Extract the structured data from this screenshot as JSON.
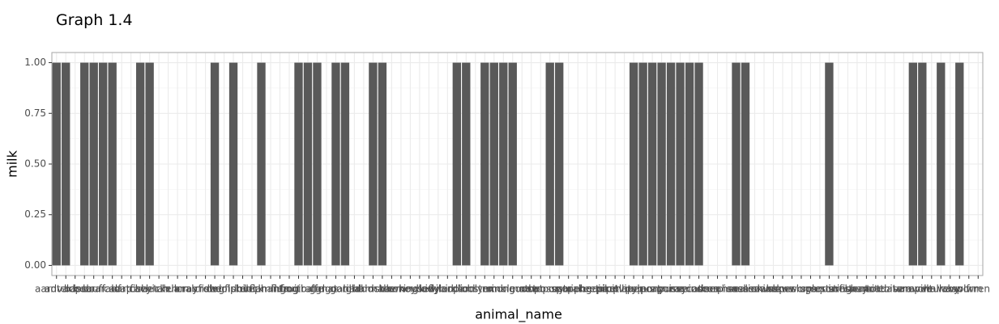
{
  "chart_data": {
    "type": "bar",
    "title": "Graph 1.4",
    "x_label": "animal_name",
    "y_label": "milk",
    "categories": [
      "aardvark",
      "antelope",
      "bass",
      "bear",
      "boar",
      "buffalo",
      "calf",
      "carp",
      "catfish",
      "cavy",
      "cheetah",
      "chicken",
      "chub",
      "clam",
      "crab",
      "crayfish",
      "crow",
      "deer",
      "dogfish",
      "dolphin",
      "dove",
      "duck",
      "elephant",
      "flamingo",
      "flea",
      "frog",
      "fruitbat",
      "giraffe",
      "girl",
      "gnat",
      "goat",
      "gorilla",
      "gull",
      "haddock",
      "hamster",
      "hare",
      "hawk",
      "herring",
      "honeybee",
      "housefly",
      "kiwi",
      "ladybird",
      "lark",
      "leopard",
      "lion",
      "lobster",
      "lynx",
      "mink",
      "mole",
      "mongoose",
      "moth",
      "newt",
      "octopus",
      "opossum",
      "oryx",
      "ostrich",
      "parakeet",
      "penguin",
      "pheasant",
      "pike",
      "piranha",
      "pitviper",
      "platypus",
      "polecat",
      "pony",
      "porpoise",
      "puma",
      "pussycat",
      "raccoon",
      "reindeer",
      "rhea",
      "scorpion",
      "seahorse",
      "seal",
      "sealion",
      "seasnake",
      "seawasp",
      "skimmer",
      "skua",
      "slowworm",
      "slug",
      "sole",
      "sparrow",
      "squirrel",
      "starfish",
      "stingray",
      "swan",
      "termite",
      "toad",
      "tortoise",
      "tuatara",
      "tuna",
      "vampire",
      "vole",
      "vulture",
      "wallaby",
      "wasp",
      "wolf",
      "worm",
      "wren"
    ],
    "values": [
      1,
      1,
      0,
      1,
      1,
      1,
      1,
      0,
      0,
      1,
      1,
      0,
      0,
      0,
      0,
      0,
      0,
      1,
      0,
      1,
      0,
      0,
      1,
      0,
      0,
      0,
      1,
      1,
      1,
      0,
      1,
      1,
      0,
      0,
      1,
      1,
      0,
      0,
      0,
      0,
      0,
      0,
      0,
      1,
      1,
      0,
      1,
      1,
      1,
      1,
      0,
      0,
      0,
      1,
      1,
      0,
      0,
      0,
      0,
      0,
      0,
      0,
      1,
      1,
      1,
      1,
      1,
      1,
      1,
      1,
      0,
      0,
      0,
      1,
      1,
      0,
      0,
      0,
      0,
      0,
      0,
      0,
      0,
      1,
      0,
      0,
      0,
      0,
      0,
      0,
      0,
      0,
      1,
      1,
      0,
      1,
      0,
      1,
      0,
      0
    ],
    "color": "#595959",
    "ylim": [
      -0.05,
      1.05
    ],
    "yticks": [
      {
        "value": 0,
        "label": "0.00"
      },
      {
        "value": 0.25,
        "label": "0.25"
      },
      {
        "value": 0.5,
        "label": "0.50"
      },
      {
        "value": 0.75,
        "label": "0.75"
      },
      {
        "value": 1,
        "label": "1.00"
      }
    ],
    "grid": true
  }
}
